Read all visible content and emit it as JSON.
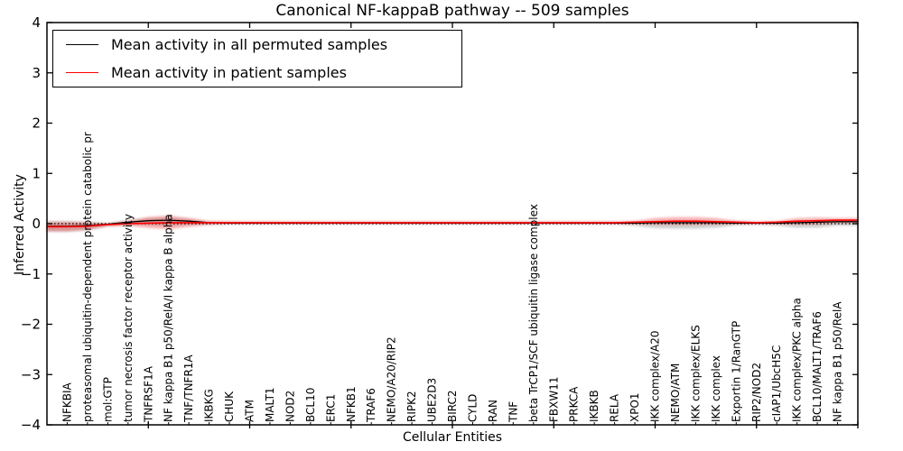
{
  "figure": {
    "title": "Canonical NF-kappaB pathway -- 509 samples",
    "xlabel": "Cellular Entities",
    "ylabel": "Inferred Activity"
  },
  "legend": {
    "position": "upper left",
    "items": [
      {
        "label": "Mean activity in all permuted samples",
        "color": "#000000"
      },
      {
        "label": "Mean activity in patient samples",
        "color": "#ff0000"
      }
    ]
  },
  "chart_data": {
    "type": "line",
    "title": "Canonical NF-kappaB pathway -- 509 samples",
    "xlabel": "Cellular Entities",
    "ylabel": "Inferred Activity",
    "xlim": [
      0,
      40
    ],
    "ylim": [
      -4,
      4
    ],
    "yticks": [
      -4,
      -3,
      -2,
      -1,
      0,
      1,
      2,
      3,
      4
    ],
    "xticks_major": [
      5,
      10,
      15,
      20,
      25,
      30,
      35,
      40
    ],
    "grid": false,
    "legend_position": "upper left",
    "zero_line": {
      "y": 0,
      "style": "dotted",
      "color": "#000000"
    },
    "categories": [
      "NFKBIA",
      "proteasomal ubiquitin-dependent protein catabolic pr",
      "mol:GTP",
      "tumor necrosis factor receptor activity",
      "TNFRSF1A",
      "NF kappa B1 p50/RelA/I kappa B alpha",
      "TNF/TNFR1A",
      "IKBKG",
      "CHUK",
      "ATM",
      "MALT1",
      "NOD2",
      "BCL10",
      "ERC1",
      "NFKB1",
      "TRAF6",
      "NEMO/A20/RIP2",
      "RIPK2",
      "UBE2D3",
      "BIRC2",
      "CYLD",
      "RAN",
      "TNF",
      "beta TrCP1/SCF ubiquitin ligase complex",
      "FBXW11",
      "PRKCA",
      "IKBKB",
      "RELA",
      "XPO1",
      "IKK complex/A20",
      "NEMO/ATM",
      "IKK complex/ELKS",
      "IKK complex",
      "Exportin 1/RanGTP",
      "RIP2/NOD2",
      "cIAP1/UbcH5C",
      "IKK complex/PKC alpha",
      "BCL10/MALT1/TRAF6",
      "NF kappa B1 p50/RelA"
    ],
    "series": [
      {
        "name": "Mean activity in all permuted samples",
        "color": "#000000",
        "values": [
          -0.05,
          -0.04,
          -0.01,
          0.03,
          0.06,
          0.07,
          0.05,
          0.02,
          0.01,
          0.01,
          0.01,
          0.01,
          0.01,
          0.01,
          0.01,
          0.01,
          0.01,
          0.01,
          0.01,
          0.01,
          0.01,
          0.01,
          0.01,
          0.01,
          0.01,
          0.01,
          0.01,
          0.01,
          0.01,
          0.02,
          0.02,
          0.02,
          0.02,
          0.01,
          0.01,
          0.01,
          0.02,
          0.03,
          0.04
        ]
      },
      {
        "name": "Mean activity in patient samples",
        "color": "#ff0000",
        "values": [
          -0.06,
          -0.05,
          -0.02,
          0.0,
          0.01,
          0.02,
          0.02,
          0.02,
          0.02,
          0.02,
          0.02,
          0.02,
          0.02,
          0.02,
          0.02,
          0.02,
          0.02,
          0.02,
          0.02,
          0.02,
          0.02,
          0.02,
          0.02,
          0.02,
          0.02,
          0.02,
          0.02,
          0.02,
          0.03,
          0.04,
          0.05,
          0.05,
          0.04,
          0.03,
          0.02,
          0.03,
          0.05,
          0.06,
          0.07
        ]
      }
    ],
    "bands": [
      {
        "name": "permuted-sample-range",
        "color": "#999999",
        "opacity": 0.45,
        "upper": [
          0.05,
          0.04,
          0.01,
          0.07,
          0.11,
          0.12,
          0.09,
          0.04,
          0.03,
          0.03,
          0.03,
          0.03,
          0.03,
          0.03,
          0.03,
          0.03,
          0.03,
          0.03,
          0.03,
          0.03,
          0.03,
          0.03,
          0.03,
          0.03,
          0.03,
          0.03,
          0.03,
          0.03,
          0.03,
          0.04,
          0.04,
          0.04,
          0.04,
          0.03,
          0.02,
          0.03,
          0.04,
          0.04,
          0.05
        ],
        "lower": [
          -0.16,
          -0.13,
          -0.05,
          -0.02,
          -0.02,
          -0.03,
          -0.02,
          -0.01,
          -0.01,
          -0.01,
          -0.01,
          -0.01,
          -0.01,
          -0.01,
          -0.01,
          -0.01,
          -0.01,
          -0.01,
          -0.01,
          -0.01,
          -0.01,
          -0.01,
          -0.01,
          -0.01,
          -0.01,
          -0.01,
          -0.01,
          -0.01,
          -0.04,
          -0.09,
          -0.1,
          -0.1,
          -0.08,
          -0.03,
          -0.02,
          -0.04,
          -0.08,
          -0.08,
          -0.04
        ]
      },
      {
        "name": "patient-sample-range",
        "color": "#e82222",
        "opacity": 0.35,
        "upper": [
          0.03,
          0.02,
          0.0,
          0.05,
          0.13,
          0.16,
          0.11,
          0.05,
          0.04,
          0.04,
          0.04,
          0.04,
          0.04,
          0.04,
          0.04,
          0.04,
          0.04,
          0.04,
          0.04,
          0.04,
          0.04,
          0.04,
          0.04,
          0.04,
          0.04,
          0.04,
          0.04,
          0.04,
          0.05,
          0.11,
          0.13,
          0.13,
          0.11,
          0.06,
          0.04,
          0.05,
          0.11,
          0.12,
          0.11
        ],
        "lower": [
          -0.15,
          -0.12,
          -0.05,
          -0.04,
          -0.08,
          -0.11,
          -0.06,
          -0.02,
          0.0,
          0.0,
          0.0,
          0.0,
          0.0,
          0.0,
          0.0,
          0.0,
          0.0,
          0.0,
          0.0,
          0.0,
          0.0,
          0.0,
          0.0,
          0.0,
          0.0,
          0.0,
          0.0,
          0.0,
          0.0,
          -0.01,
          -0.02,
          -0.02,
          -0.01,
          0.0,
          0.0,
          0.0,
          -0.01,
          -0.01,
          0.01
        ]
      }
    ]
  }
}
